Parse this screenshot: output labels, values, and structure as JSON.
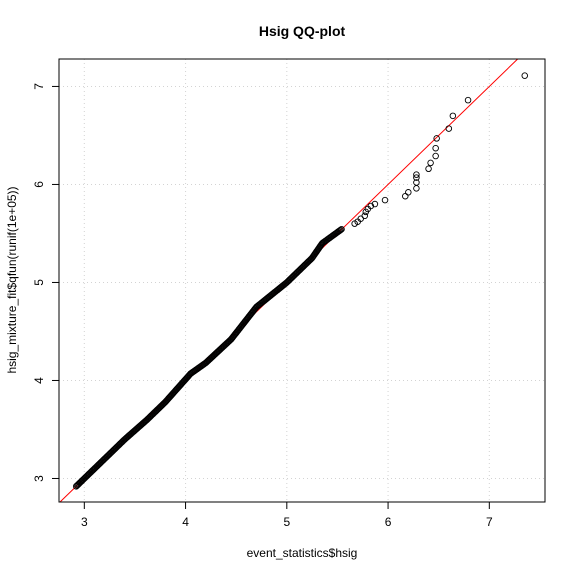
{
  "chart_data": {
    "type": "scatter",
    "title": "Hsig QQ-plot",
    "xlabel": "event_statistics$hsig",
    "ylabel": "hsig_mixture_fit$qfun(runif(1e+05))",
    "xlim": [
      2.75,
      7.55
    ],
    "ylim": [
      2.76,
      7.28
    ],
    "x_ticks": [
      3,
      4,
      5,
      6,
      7
    ],
    "y_ticks": [
      3,
      4,
      5,
      6,
      7
    ],
    "grid": true,
    "grid_color": "#d3d3d3",
    "point_color": "#000000",
    "reference_line": {
      "color": "#ff0000",
      "intercept": 0,
      "slope": 1
    },
    "dense_segments": [
      {
        "from": [
          2.92,
          2.92
        ],
        "to": [
          3.4,
          3.4
        ]
      },
      {
        "from": [
          3.4,
          3.4
        ],
        "to": [
          3.62,
          3.6
        ]
      },
      {
        "from": [
          3.62,
          3.6
        ],
        "to": [
          3.8,
          3.78
        ]
      },
      {
        "from": [
          3.8,
          3.78
        ],
        "to": [
          4.05,
          4.07
        ]
      },
      {
        "from": [
          4.05,
          4.07
        ],
        "to": [
          4.2,
          4.18
        ]
      },
      {
        "from": [
          4.2,
          4.18
        ],
        "to": [
          4.45,
          4.42
        ]
      },
      {
        "from": [
          4.45,
          4.42
        ],
        "to": [
          4.7,
          4.75
        ]
      },
      {
        "from": [
          4.7,
          4.75
        ],
        "to": [
          5.0,
          5.0
        ]
      },
      {
        "from": [
          5.0,
          5.0
        ],
        "to": [
          5.25,
          5.25
        ]
      },
      {
        "from": [
          5.25,
          5.25
        ],
        "to": [
          5.35,
          5.4
        ]
      },
      {
        "from": [
          5.35,
          5.4
        ],
        "to": [
          5.55,
          5.55
        ]
      }
    ],
    "points": [
      [
        5.67,
        5.6
      ],
      [
        5.7,
        5.62
      ],
      [
        5.73,
        5.65
      ],
      [
        5.77,
        5.68
      ],
      [
        5.78,
        5.72
      ],
      [
        5.8,
        5.75
      ],
      [
        5.83,
        5.78
      ],
      [
        5.87,
        5.8
      ],
      [
        5.97,
        5.84
      ],
      [
        6.17,
        5.88
      ],
      [
        6.2,
        5.92
      ],
      [
        6.28,
        5.96
      ],
      [
        6.28,
        6.02
      ],
      [
        6.28,
        6.07
      ],
      [
        6.28,
        6.1
      ],
      [
        6.4,
        6.16
      ],
      [
        6.42,
        6.22
      ],
      [
        6.47,
        6.29
      ],
      [
        6.47,
        6.37
      ],
      [
        6.48,
        6.47
      ],
      [
        6.6,
        6.57
      ],
      [
        6.64,
        6.7
      ],
      [
        6.79,
        6.86
      ],
      [
        7.35,
        7.11
      ]
    ]
  }
}
